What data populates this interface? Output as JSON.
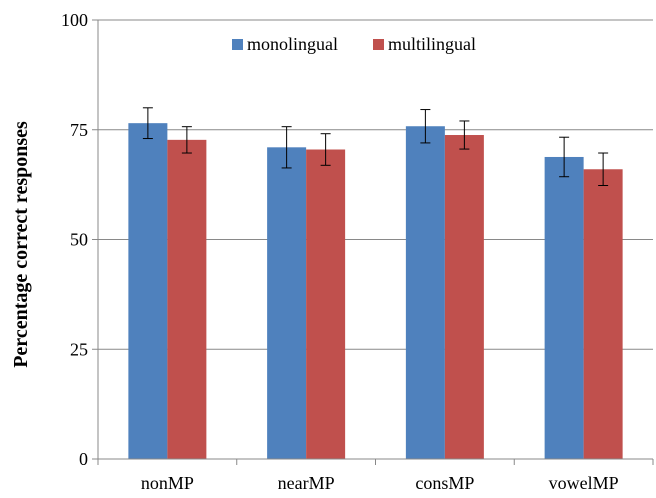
{
  "chart_data": {
    "type": "bar",
    "title": "",
    "xlabel": "",
    "ylabel": "Percentage correct responses",
    "ylim": [
      0,
      100
    ],
    "yticks": [
      0,
      25,
      50,
      75,
      100
    ],
    "grid": true,
    "legend_position": "top-center",
    "categories": [
      "nonMP",
      "nearMP",
      "consMP",
      "vowelMP"
    ],
    "series": [
      {
        "name": "monolingual",
        "color": "#4F81BD",
        "values": [
          76.5,
          71,
          75.8,
          68.8
        ],
        "error": [
          3.5,
          4.7,
          3.8,
          4.5
        ]
      },
      {
        "name": "multilingual",
        "color": "#C0504D",
        "values": [
          72.7,
          70.5,
          73.8,
          66
        ],
        "error": [
          3,
          3.6,
          3.2,
          3.7
        ]
      }
    ]
  }
}
